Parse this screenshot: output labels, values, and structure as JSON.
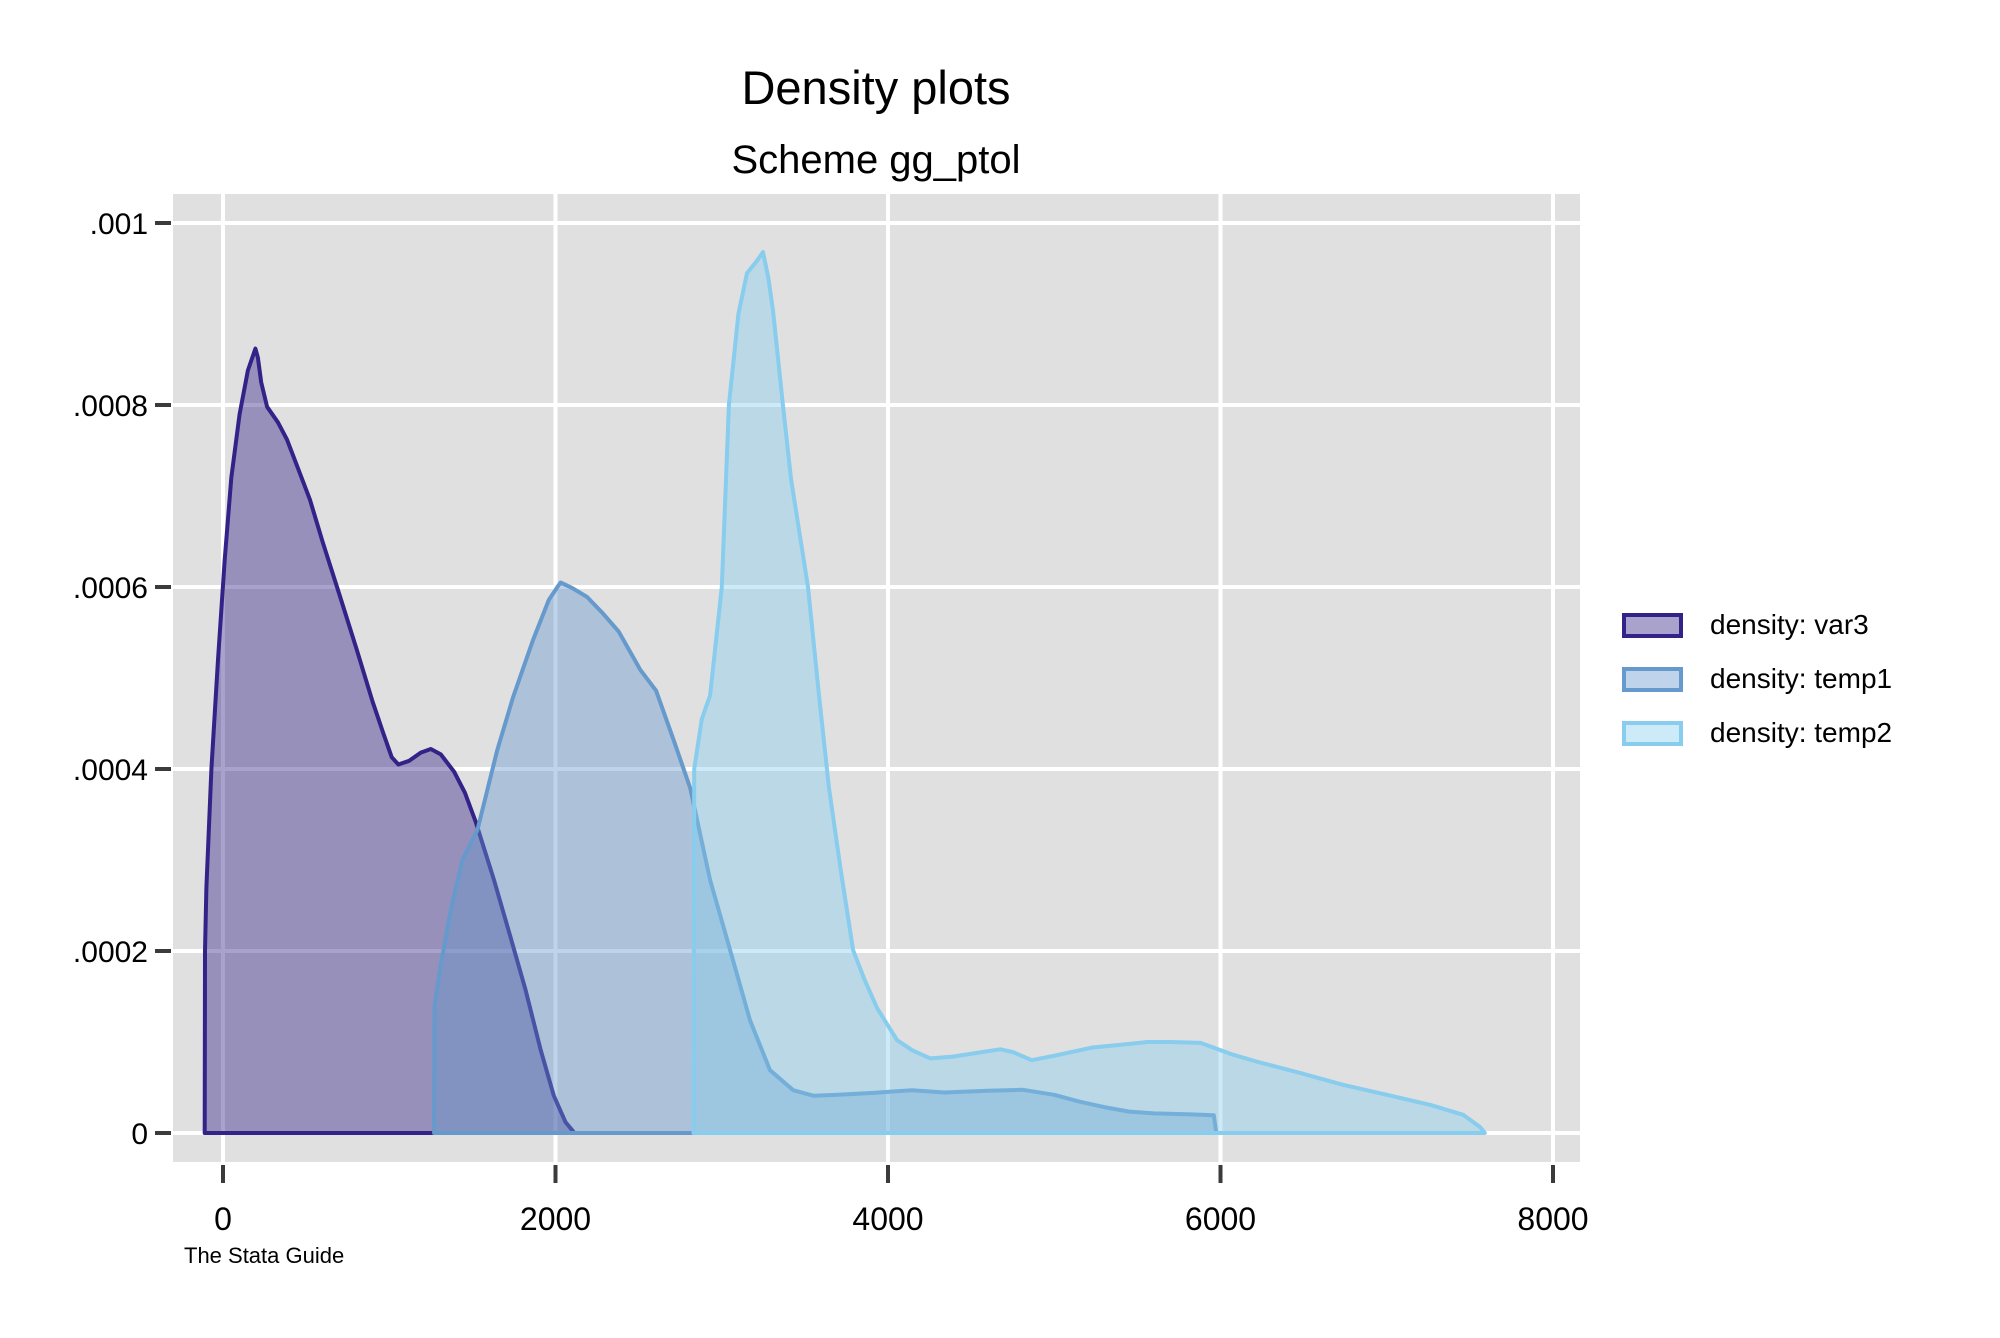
{
  "header": {
    "title": "Density plots",
    "subtitle": "Scheme gg_ptol"
  },
  "caption": "The Stata Guide",
  "chart_data": {
    "type": "area",
    "title": "Density plots",
    "subtitle": "Scheme gg_ptol",
    "xlabel": "",
    "ylabel": "",
    "xlim": [
      -301,
      8162
    ],
    "ylim": [
      -3.2e-05,
      0.001032
    ],
    "grid": true,
    "panel_color": "#E0E0E0",
    "grid_color": "#FFFFFF",
    "tick_color": "#3B3B3B",
    "text_color": "#000000",
    "legend_position": "right-outside",
    "x_ticks": [
      {
        "value": 0,
        "label": "0"
      },
      {
        "value": 2000,
        "label": "2000"
      },
      {
        "value": 4000,
        "label": "4000"
      },
      {
        "value": 6000,
        "label": "6000"
      },
      {
        "value": 8000,
        "label": "8000"
      }
    ],
    "y_ticks": [
      {
        "value": 0,
        "label": "0"
      },
      {
        "value": 0.0002,
        "label": ".0002"
      },
      {
        "value": 0.0004,
        "label": ".0004"
      },
      {
        "value": 0.0006,
        "label": ".0006"
      },
      {
        "value": 0.0008,
        "label": ".0008"
      },
      {
        "value": 0.001,
        "label": ".001"
      }
    ],
    "series": [
      {
        "name": "density: var3",
        "color": "#332288",
        "fill_opacity": 0.42,
        "points": [
          [
            -110,
            0
          ],
          [
            -108,
            0.0002
          ],
          [
            -100,
            0.00027
          ],
          [
            -70,
            0.0004
          ],
          [
            -30,
            0.00052
          ],
          [
            10,
            0.00063
          ],
          [
            50,
            0.00072
          ],
          [
            100,
            0.00079
          ],
          [
            150,
            0.000838
          ],
          [
            195,
            0.000862
          ],
          [
            210,
            0.000852
          ],
          [
            230,
            0.000825
          ],
          [
            265,
            0.000798
          ],
          [
            330,
            0.000781
          ],
          [
            385,
            0.000762
          ],
          [
            450,
            0.000731
          ],
          [
            523,
            0.000696
          ],
          [
            600,
            0.000649
          ],
          [
            705,
            0.000589
          ],
          [
            805,
            0.000531
          ],
          [
            900,
            0.000474
          ],
          [
            965,
            0.000439
          ],
          [
            1015,
            0.000413
          ],
          [
            1055,
            0.000405
          ],
          [
            1120,
            0.000409
          ],
          [
            1190,
            0.000418
          ],
          [
            1250,
            0.000422
          ],
          [
            1310,
            0.000416
          ],
          [
            1390,
            0.000397
          ],
          [
            1455,
            0.000374
          ],
          [
            1520,
            0.000342
          ],
          [
            1630,
            0.000278
          ],
          [
            1730,
            0.000215
          ],
          [
            1820,
            0.000157
          ],
          [
            1910,
            9.2e-05
          ],
          [
            1990,
            4.1e-05
          ],
          [
            2060,
            1.2e-05
          ],
          [
            2105,
            2e-06
          ],
          [
            2112,
            0
          ]
        ]
      },
      {
        "name": "density: temp1",
        "color": "#6699CC",
        "fill_opacity": 0.42,
        "points": [
          [
            1270,
            0
          ],
          [
            1273,
            0.00014
          ],
          [
            1310,
            0.000185
          ],
          [
            1370,
            0.000245
          ],
          [
            1440,
            0.0003
          ],
          [
            1530,
            0.000333
          ],
          [
            1650,
            0.000421
          ],
          [
            1745,
            0.000479
          ],
          [
            1865,
            0.000542
          ],
          [
            1960,
            0.000586
          ],
          [
            2030,
            0.000605
          ],
          [
            2100,
            0.000599
          ],
          [
            2190,
            0.000589
          ],
          [
            2285,
            0.000571
          ],
          [
            2380,
            0.000551
          ],
          [
            2510,
            0.000509
          ],
          [
            2605,
            0.000486
          ],
          [
            2712,
            0.000431
          ],
          [
            2810,
            0.000379
          ],
          [
            2930,
            0.000278
          ],
          [
            3050,
            0.000201
          ],
          [
            3170,
            0.000124
          ],
          [
            3290,
            6.9e-05
          ],
          [
            3430,
            4.7e-05
          ],
          [
            3550,
            4.1e-05
          ],
          [
            3700,
            4.2e-05
          ],
          [
            3900,
            4.4e-05
          ],
          [
            4145,
            4.7e-05
          ],
          [
            4340,
            4.45e-05
          ],
          [
            4600,
            4.65e-05
          ],
          [
            4810,
            4.75e-05
          ],
          [
            5000,
            4.2e-05
          ],
          [
            5150,
            3.45e-05
          ],
          [
            5300,
            2.85e-05
          ],
          [
            5450,
            2.35e-05
          ],
          [
            5600,
            2.15e-05
          ],
          [
            5800,
            2.05e-05
          ],
          [
            5960,
            1.95e-05
          ],
          [
            5975,
            0
          ]
        ]
      },
      {
        "name": "density: temp2",
        "color": "#88CCEE",
        "fill_opacity": 0.42,
        "points": [
          [
            2830,
            0
          ],
          [
            2834,
            0.0004
          ],
          [
            2880,
            0.000455
          ],
          [
            2930,
            0.000481
          ],
          [
            3000,
            0.0006
          ],
          [
            3043,
            0.0008
          ],
          [
            3100,
            0.0009
          ],
          [
            3152,
            0.000945
          ],
          [
            3210,
            0.000958
          ],
          [
            3248,
            0.000968
          ],
          [
            3280,
            0.00094
          ],
          [
            3308,
            0.000904
          ],
          [
            3368,
            0.0008
          ],
          [
            3417,
            0.000718
          ],
          [
            3519,
            0.0006
          ],
          [
            3585,
            0.000481
          ],
          [
            3645,
            0.000379
          ],
          [
            3715,
            0.00029
          ],
          [
            3790,
            0.000201
          ],
          [
            3860,
            0.000168
          ],
          [
            3935,
            0.000137
          ],
          [
            4055,
            0.000102
          ],
          [
            4145,
            9.1e-05
          ],
          [
            4255,
            8.2e-05
          ],
          [
            4390,
            8.4e-05
          ],
          [
            4535,
            8.8e-05
          ],
          [
            4675,
            9.2e-05
          ],
          [
            4750,
            8.9e-05
          ],
          [
            4865,
            8e-05
          ],
          [
            5000,
            8.5e-05
          ],
          [
            5230,
            9.4e-05
          ],
          [
            5400,
            9.7e-05
          ],
          [
            5560,
            0.0001
          ],
          [
            5700,
            0.0001
          ],
          [
            5880,
            9.9e-05
          ],
          [
            6075,
            8.6e-05
          ],
          [
            6226,
            7.8e-05
          ],
          [
            6478,
            6.6e-05
          ],
          [
            6737,
            5.3e-05
          ],
          [
            7001,
            4.2e-05
          ],
          [
            7260,
            3.1e-05
          ],
          [
            7459,
            2e-05
          ],
          [
            7561,
            6.6e-06
          ],
          [
            7590,
            0
          ]
        ]
      }
    ]
  }
}
